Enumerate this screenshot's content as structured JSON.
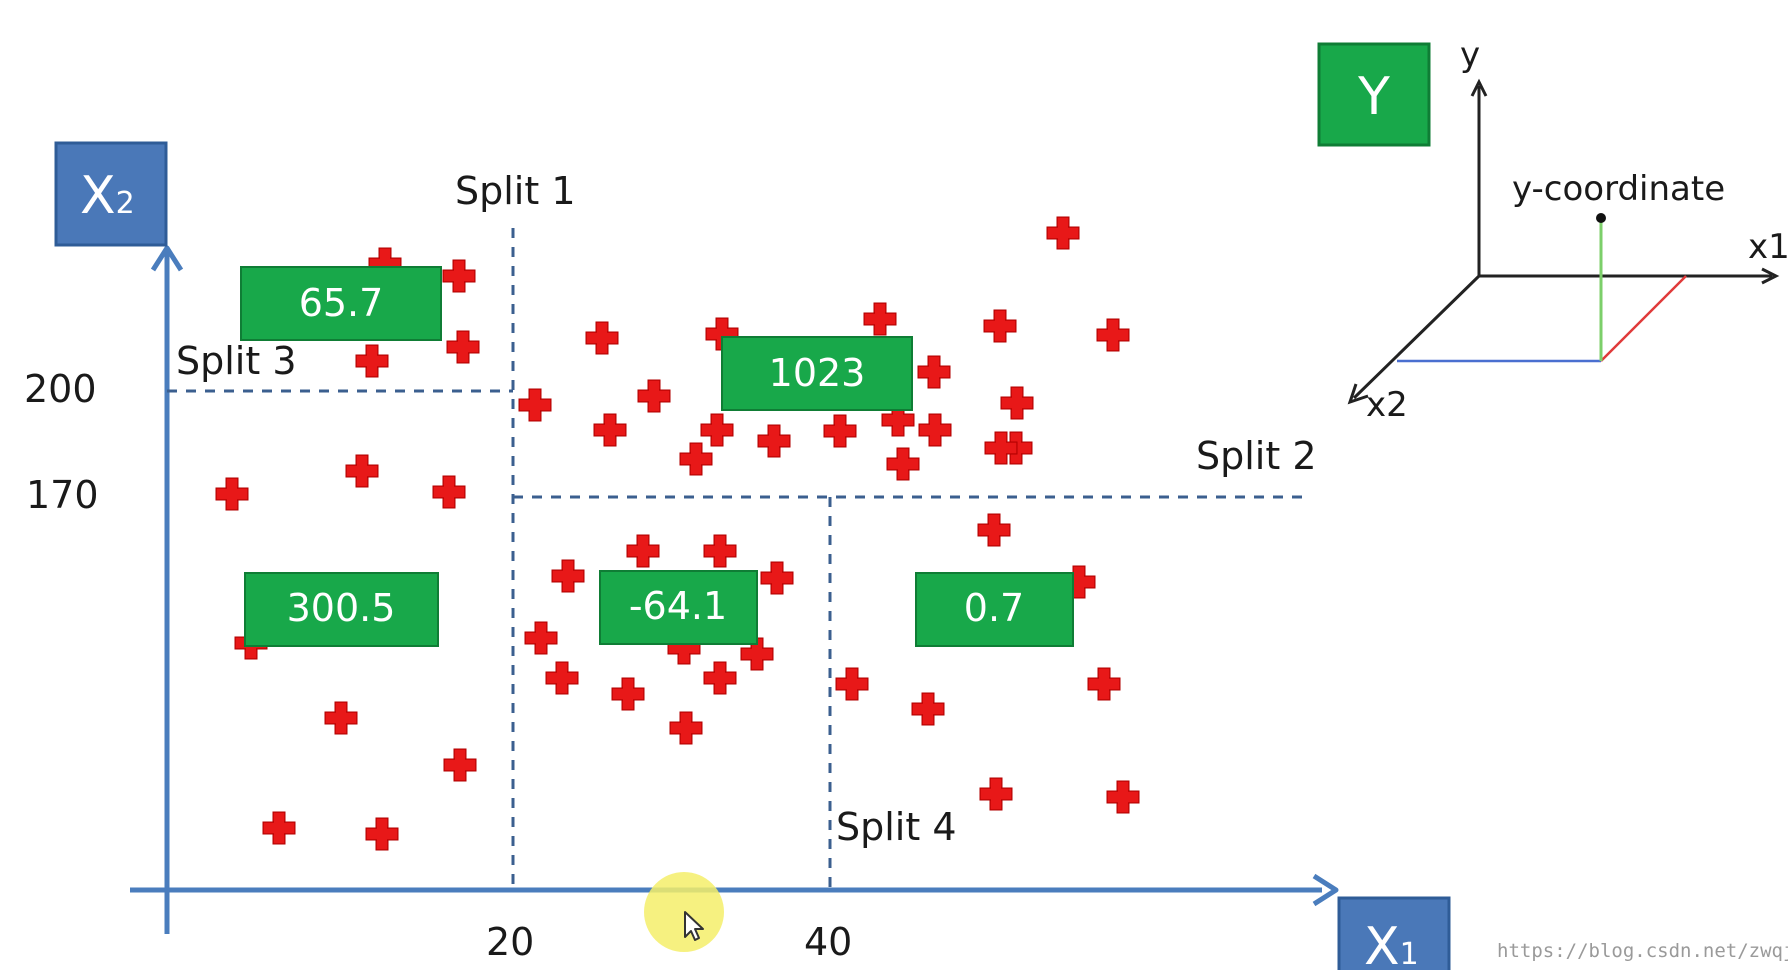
{
  "axes": {
    "x_axis_label_main": "X",
    "x_axis_label_sub": "1",
    "y_axis_label_main": "X",
    "y_axis_label_sub": "2",
    "x_ticks": [
      "20",
      "40"
    ],
    "y_ticks": [
      "200",
      "170"
    ]
  },
  "splits": {
    "split1": "Split 1",
    "split2": "Split 2",
    "split3": "Split 3",
    "split4": "Split 4"
  },
  "region_values": [
    "65.7",
    "1023",
    "300.5",
    "-64.1",
    "0.7"
  ],
  "inset": {
    "y_box_label": "Y",
    "axis_y": "y",
    "axis_x1": "x1",
    "axis_x2": "x2",
    "point_label": "y-coordinate"
  },
  "watermark": "https://blog.csdn.net/zwqjoy",
  "colors": {
    "axis": "#4a7dbd",
    "axis_box": "#4a78b8",
    "value_box": "#18a84a",
    "marker": "#e01010",
    "cursor_highlight": "#f4ee6a"
  }
}
